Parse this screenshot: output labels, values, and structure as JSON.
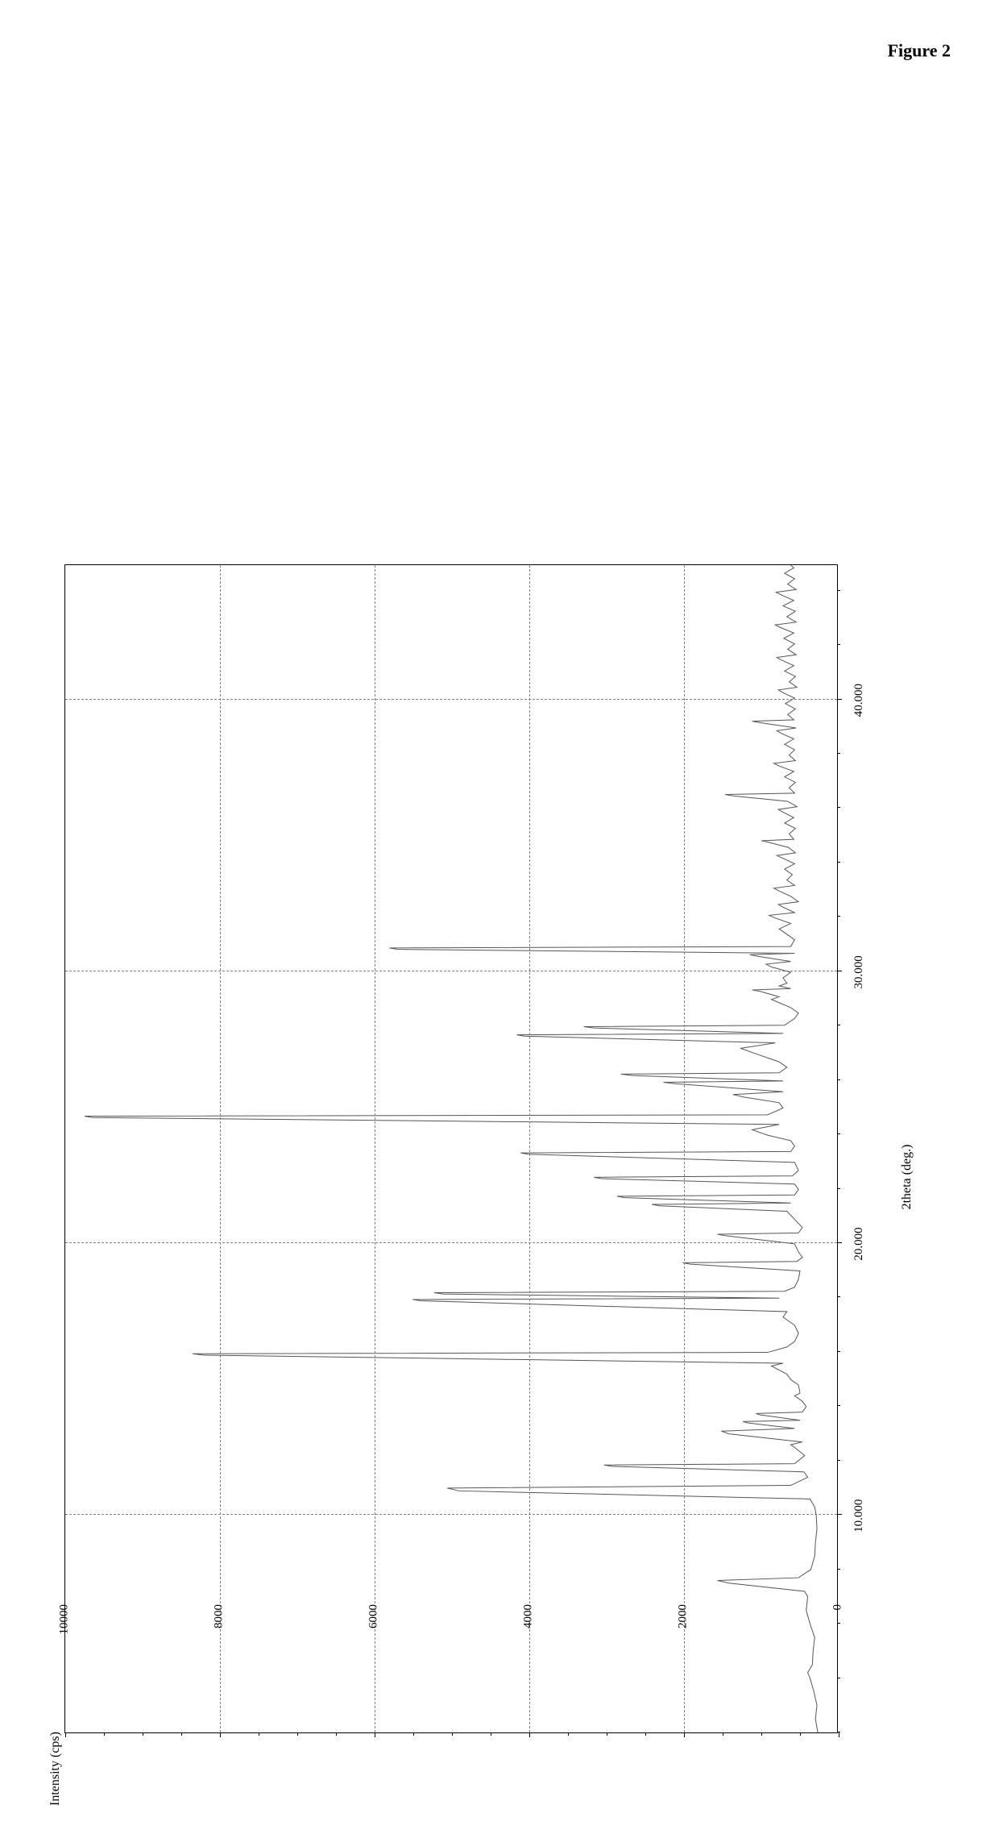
{
  "figure_title": "Figure 2",
  "xrd_chart": {
    "type": "line",
    "xlabel": "2theta (deg.)",
    "ylabel": "Intensity (cps)",
    "xlim": [
      2,
      45
    ],
    "ylim": [
      0,
      10000
    ],
    "x_major_ticks": [
      10,
      20,
      30,
      40
    ],
    "x_major_labels": [
      "10.000",
      "20.000",
      "30.000",
      "40.000"
    ],
    "x_minor_step": 2,
    "y_major_ticks": [
      0,
      2000,
      4000,
      6000,
      8000,
      10000
    ],
    "y_major_labels": [
      "0",
      "2000",
      "4000",
      "6000",
      "8000",
      "10000"
    ],
    "y_minor_step": 500,
    "grid_color": "#808080",
    "line_color": "#555555",
    "line_width": 1.0,
    "background_color": "#ffffff",
    "label_fontsize": 16,
    "tick_fontsize": 15,
    "title_fontsize": 22,
    "data": [
      [
        2.0,
        250
      ],
      [
        2.5,
        280
      ],
      [
        3.0,
        260
      ],
      [
        3.5,
        300
      ],
      [
        4.0,
        350
      ],
      [
        4.2,
        380
      ],
      [
        4.5,
        320
      ],
      [
        5.0,
        310
      ],
      [
        5.5,
        290
      ],
      [
        6.0,
        350
      ],
      [
        6.5,
        400
      ],
      [
        7.0,
        380
      ],
      [
        7.2,
        420
      ],
      [
        7.5,
        1400
      ],
      [
        7.6,
        1550
      ],
      [
        7.7,
        500
      ],
      [
        8.0,
        340
      ],
      [
        8.3,
        310
      ],
      [
        8.5,
        290
      ],
      [
        9.0,
        280
      ],
      [
        9.5,
        260
      ],
      [
        10.0,
        270
      ],
      [
        10.3,
        290
      ],
      [
        10.6,
        350
      ],
      [
        10.9,
        4900
      ],
      [
        11.0,
        5050
      ],
      [
        11.1,
        600
      ],
      [
        11.4,
        380
      ],
      [
        11.6,
        430
      ],
      [
        11.8,
        2900
      ],
      [
        11.85,
        3020
      ],
      [
        11.9,
        550
      ],
      [
        12.2,
        420
      ],
      [
        12.5,
        550
      ],
      [
        12.6,
        600
      ],
      [
        12.7,
        450
      ],
      [
        13.0,
        1400
      ],
      [
        13.1,
        1500
      ],
      [
        13.2,
        550
      ],
      [
        13.4,
        1150
      ],
      [
        13.45,
        1220
      ],
      [
        13.5,
        480
      ],
      [
        13.7,
        1000
      ],
      [
        13.75,
        1050
      ],
      [
        13.8,
        450
      ],
      [
        14.0,
        400
      ],
      [
        14.2,
        450
      ],
      [
        14.4,
        550
      ],
      [
        14.5,
        480
      ],
      [
        14.8,
        500
      ],
      [
        15.0,
        600
      ],
      [
        15.2,
        650
      ],
      [
        15.5,
        850
      ],
      [
        15.6,
        700
      ],
      [
        15.9,
        8200
      ],
      [
        15.95,
        8350
      ],
      [
        16.0,
        900
      ],
      [
        16.2,
        650
      ],
      [
        16.4,
        550
      ],
      [
        16.7,
        500
      ],
      [
        17.0,
        550
      ],
      [
        17.3,
        700
      ],
      [
        17.5,
        650
      ],
      [
        17.9,
        5400
      ],
      [
        17.95,
        5500
      ],
      [
        18.0,
        750
      ],
      [
        18.15,
        5100
      ],
      [
        18.2,
        5220
      ],
      [
        18.25,
        680
      ],
      [
        18.4,
        550
      ],
      [
        18.7,
        500
      ],
      [
        19.0,
        480
      ],
      [
        19.25,
        1900
      ],
      [
        19.3,
        2000
      ],
      [
        19.35,
        520
      ],
      [
        19.5,
        450
      ],
      [
        19.7,
        500
      ],
      [
        20.0,
        550
      ],
      [
        20.3,
        1450
      ],
      [
        20.35,
        1550
      ],
      [
        20.4,
        500
      ],
      [
        20.6,
        450
      ],
      [
        20.9,
        550
      ],
      [
        21.2,
        650
      ],
      [
        21.4,
        2300
      ],
      [
        21.45,
        2400
      ],
      [
        21.5,
        600
      ],
      [
        21.7,
        2750
      ],
      [
        21.75,
        2850
      ],
      [
        21.8,
        550
      ],
      [
        22.0,
        500
      ],
      [
        22.2,
        550
      ],
      [
        22.4,
        3050
      ],
      [
        22.45,
        3150
      ],
      [
        22.5,
        580
      ],
      [
        22.7,
        500
      ],
      [
        23.0,
        550
      ],
      [
        23.3,
        4000
      ],
      [
        23.35,
        4100
      ],
      [
        23.4,
        600
      ],
      [
        23.6,
        550
      ],
      [
        23.8,
        600
      ],
      [
        24.0,
        900
      ],
      [
        24.2,
        1100
      ],
      [
        24.4,
        750
      ],
      [
        24.65,
        9650
      ],
      [
        24.7,
        9750
      ],
      [
        24.75,
        900
      ],
      [
        25.0,
        700
      ],
      [
        25.2,
        750
      ],
      [
        25.4,
        1200
      ],
      [
        25.5,
        1350
      ],
      [
        25.6,
        700
      ],
      [
        25.9,
        2100
      ],
      [
        25.95,
        2250
      ],
      [
        26.0,
        700
      ],
      [
        26.2,
        2650
      ],
      [
        26.25,
        2800
      ],
      [
        26.3,
        750
      ],
      [
        26.5,
        650
      ],
      [
        26.7,
        750
      ],
      [
        27.0,
        1050
      ],
      [
        27.2,
        1250
      ],
      [
        27.4,
        800
      ],
      [
        27.65,
        4050
      ],
      [
        27.7,
        4150
      ],
      [
        27.75,
        700
      ],
      [
        27.95,
        3150
      ],
      [
        28.0,
        3280
      ],
      [
        28.05,
        680
      ],
      [
        28.3,
        550
      ],
      [
        28.5,
        500
      ],
      [
        28.7,
        600
      ],
      [
        29.0,
        850
      ],
      [
        29.1,
        750
      ],
      [
        29.3,
        1000
      ],
      [
        29.35,
        1100
      ],
      [
        29.4,
        600
      ],
      [
        29.5,
        750
      ],
      [
        29.6,
        650
      ],
      [
        29.8,
        700
      ],
      [
        30.0,
        600
      ],
      [
        30.2,
        850
      ],
      [
        30.3,
        920
      ],
      [
        30.4,
        600
      ],
      [
        30.6,
        1050
      ],
      [
        30.65,
        1130
      ],
      [
        30.7,
        550
      ],
      [
        30.85,
        5700
      ],
      [
        30.9,
        5800
      ],
      [
        30.95,
        600
      ],
      [
        31.2,
        550
      ],
      [
        31.4,
        650
      ],
      [
        31.6,
        750
      ],
      [
        31.8,
        600
      ],
      [
        32.0,
        800
      ],
      [
        32.1,
        880
      ],
      [
        32.2,
        550
      ],
      [
        32.4,
        700
      ],
      [
        32.5,
        760
      ],
      [
        32.6,
        500
      ],
      [
        32.8,
        600
      ],
      [
        33.0,
        750
      ],
      [
        33.1,
        820
      ],
      [
        33.2,
        550
      ],
      [
        33.4,
        650
      ],
      [
        33.6,
        580
      ],
      [
        33.8,
        680
      ],
      [
        34.0,
        550
      ],
      [
        34.2,
        700
      ],
      [
        34.3,
        780
      ],
      [
        34.4,
        540
      ],
      [
        34.6,
        630
      ],
      [
        34.8,
        900
      ],
      [
        34.85,
        980
      ],
      [
        34.9,
        560
      ],
      [
        35.1,
        620
      ],
      [
        35.3,
        540
      ],
      [
        35.5,
        680
      ],
      [
        35.7,
        560
      ],
      [
        35.9,
        700
      ],
      [
        36.0,
        760
      ],
      [
        36.1,
        520
      ],
      [
        36.3,
        640
      ],
      [
        36.5,
        1350
      ],
      [
        36.55,
        1450
      ],
      [
        36.6,
        550
      ],
      [
        36.8,
        620
      ],
      [
        37.0,
        540
      ],
      [
        37.2,
        680
      ],
      [
        37.4,
        560
      ],
      [
        37.6,
        750
      ],
      [
        37.7,
        820
      ],
      [
        37.8,
        540
      ],
      [
        38.0,
        620
      ],
      [
        38.2,
        550
      ],
      [
        38.4,
        680
      ],
      [
        38.6,
        560
      ],
      [
        38.8,
        720
      ],
      [
        38.9,
        780
      ],
      [
        39.0,
        530
      ],
      [
        39.2,
        1000
      ],
      [
        39.25,
        1100
      ],
      [
        39.3,
        560
      ],
      [
        39.5,
        640
      ],
      [
        39.7,
        540
      ],
      [
        39.9,
        670
      ],
      [
        40.1,
        550
      ],
      [
        40.3,
        700
      ],
      [
        40.4,
        760
      ],
      [
        40.5,
        520
      ],
      [
        40.7,
        620
      ],
      [
        40.9,
        540
      ],
      [
        41.1,
        680
      ],
      [
        41.3,
        560
      ],
      [
        41.5,
        720
      ],
      [
        41.6,
        780
      ],
      [
        41.7,
        530
      ],
      [
        41.9,
        640
      ],
      [
        42.1,
        550
      ],
      [
        42.3,
        690
      ],
      [
        42.5,
        560
      ],
      [
        42.7,
        730
      ],
      [
        42.8,
        800
      ],
      [
        42.9,
        530
      ],
      [
        43.1,
        650
      ],
      [
        43.3,
        540
      ],
      [
        43.5,
        700
      ],
      [
        43.7,
        560
      ],
      [
        43.9,
        720
      ],
      [
        44.0,
        790
      ],
      [
        44.1,
        530
      ],
      [
        44.3,
        640
      ],
      [
        44.5,
        550
      ],
      [
        44.7,
        680
      ],
      [
        44.9,
        560
      ],
      [
        45.0,
        600
      ]
    ]
  }
}
